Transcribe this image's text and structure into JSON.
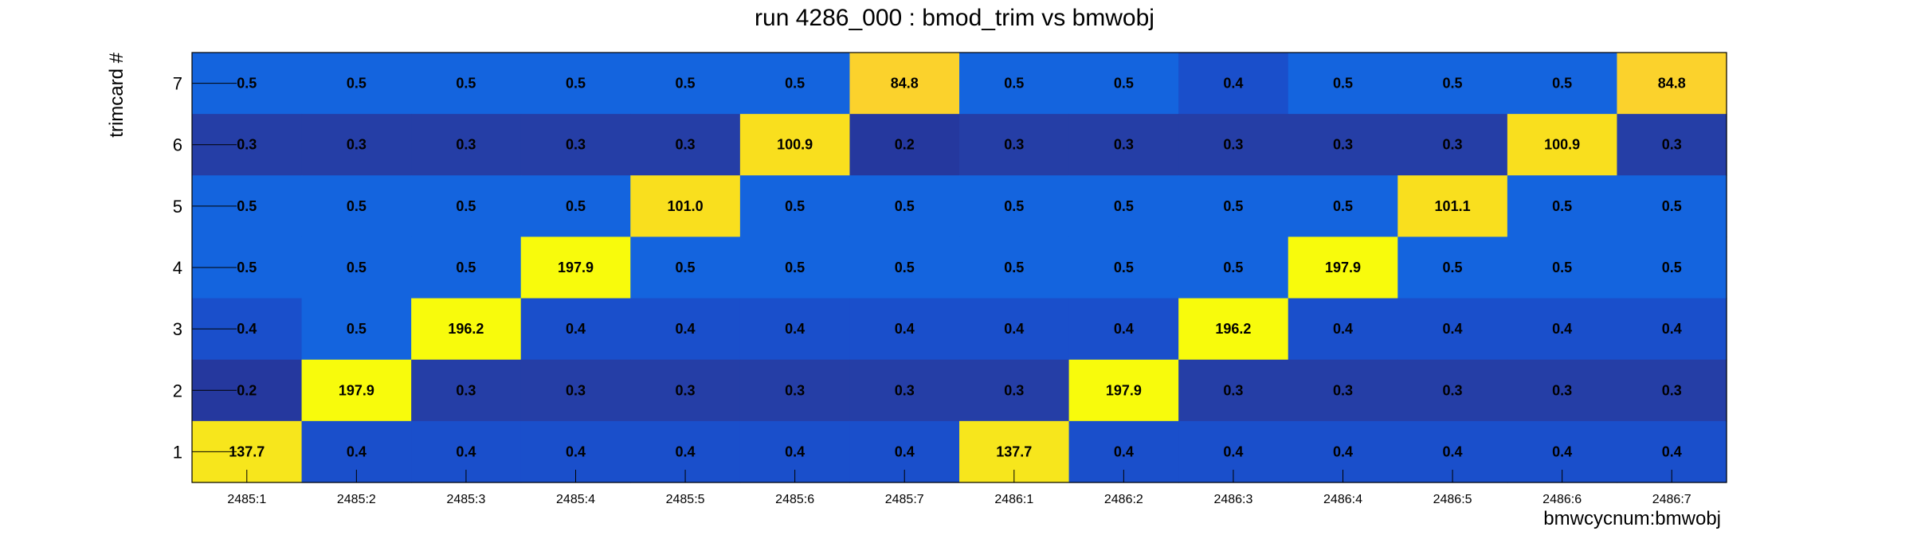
{
  "chart_data": {
    "type": "heatmap",
    "title": "run 4286_000 : bmod_trim vs bmwobj",
    "xlabel": "bmwcycnum:bmwobj",
    "ylabel": "trimcard #",
    "x": [
      "2485:1",
      "2485:2",
      "2485:3",
      "2485:4",
      "2485:5",
      "2485:6",
      "2485:7",
      "2486:1",
      "2486:2",
      "2486:3",
      "2486:4",
      "2486:5",
      "2486:6",
      "2486:7"
    ],
    "y": [
      "7",
      "6",
      "5",
      "4",
      "3",
      "2",
      "1"
    ],
    "values": [
      [
        0.5,
        0.5,
        0.5,
        0.5,
        0.5,
        0.5,
        84.8,
        0.5,
        0.5,
        0.4,
        0.5,
        0.5,
        0.5,
        84.8
      ],
      [
        0.3,
        0.3,
        0.3,
        0.3,
        0.3,
        100.9,
        0.2,
        0.3,
        0.3,
        0.3,
        0.3,
        0.3,
        100.9,
        0.3
      ],
      [
        0.5,
        0.5,
        0.5,
        0.5,
        101.0,
        0.5,
        0.5,
        0.5,
        0.5,
        0.5,
        0.5,
        101.1,
        0.5,
        0.5
      ],
      [
        0.5,
        0.5,
        0.5,
        197.9,
        0.5,
        0.5,
        0.5,
        0.5,
        0.5,
        0.5,
        197.9,
        0.5,
        0.5,
        0.5
      ],
      [
        0.4,
        0.5,
        196.2,
        0.4,
        0.4,
        0.4,
        0.4,
        0.4,
        0.4,
        196.2,
        0.4,
        0.4,
        0.4,
        0.4
      ],
      [
        0.2,
        197.9,
        0.3,
        0.3,
        0.3,
        0.3,
        0.3,
        0.3,
        197.9,
        0.3,
        0.3,
        0.3,
        0.3,
        0.3
      ],
      [
        137.7,
        0.4,
        0.4,
        0.4,
        0.4,
        0.4,
        0.4,
        137.7,
        0.4,
        0.4,
        0.4,
        0.4,
        0.4,
        0.4
      ]
    ],
    "value_labels": [
      [
        "0.5",
        "0.5",
        "0.5",
        "0.5",
        "0.5",
        "0.5",
        "84.8",
        "0.5",
        "0.5",
        "0.4",
        "0.5",
        "0.5",
        "0.5",
        "84.8"
      ],
      [
        "0.3",
        "0.3",
        "0.3",
        "0.3",
        "0.3",
        "100.9",
        "0.2",
        "0.3",
        "0.3",
        "0.3",
        "0.3",
        "0.3",
        "100.9",
        "0.3"
      ],
      [
        "0.5",
        "0.5",
        "0.5",
        "0.5",
        "101.0",
        "0.5",
        "0.5",
        "0.5",
        "0.5",
        "0.5",
        "0.5",
        "101.1",
        "0.5",
        "0.5"
      ],
      [
        "0.5",
        "0.5",
        "0.5",
        "197.9",
        "0.5",
        "0.5",
        "0.5",
        "0.5",
        "0.5",
        "0.5",
        "197.9",
        "0.5",
        "0.5",
        "0.5"
      ],
      [
        "0.4",
        "0.5",
        "196.2",
        "0.4",
        "0.4",
        "0.4",
        "0.4",
        "0.4",
        "0.4",
        "196.2",
        "0.4",
        "0.4",
        "0.4",
        "0.4"
      ],
      [
        "0.2",
        "197.9",
        "0.3",
        "0.3",
        "0.3",
        "0.3",
        "0.3",
        "0.3",
        "197.9",
        "0.3",
        "0.3",
        "0.3",
        "0.3",
        "0.3"
      ],
      [
        "137.7",
        "0.4",
        "0.4",
        "0.4",
        "0.4",
        "0.4",
        "0.4",
        "137.7",
        "0.4",
        "0.4",
        "0.4",
        "0.4",
        "0.4",
        "0.4"
      ]
    ],
    "colors": {
      "level_0_2": "#25389e",
      "level_0_3": "#253ea6",
      "level_0_4": "#1a4fcb",
      "level_0_5": "#1464de",
      "level_85": "#fbd22c",
      "level_100": "#f9df1e",
      "level_138": "#f7e61c",
      "level_high": "#f8fb0c"
    },
    "grid": false,
    "legend": "none"
  }
}
